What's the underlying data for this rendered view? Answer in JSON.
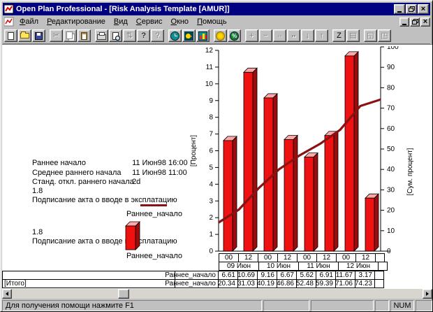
{
  "window": {
    "title": "Open Plan Professional - [Risk Analysis Template [AMUR]]"
  },
  "menu": {
    "items": [
      {
        "label": "Файл",
        "u": 0
      },
      {
        "label": "Редактирование",
        "u": 0
      },
      {
        "label": "Вид",
        "u": 0
      },
      {
        "label": "Сервис",
        "u": 0
      },
      {
        "label": "Окно",
        "u": 0
      },
      {
        "label": "Помощь",
        "u": 0
      }
    ]
  },
  "toolbar": {
    "buttons": [
      {
        "name": "new-document",
        "icon": "page",
        "enabled": true
      },
      {
        "name": "open-file",
        "icon": "folder",
        "enabled": true
      },
      {
        "name": "save",
        "icon": "floppy",
        "enabled": true
      },
      {
        "name": "cut",
        "glyph": "✂",
        "enabled": false,
        "gap": true
      },
      {
        "name": "copy",
        "icon": "copy",
        "enabled": false
      },
      {
        "name": "paste",
        "icon": "paste",
        "enabled": false
      },
      {
        "name": "print",
        "icon": "print",
        "enabled": true,
        "gap": true
      },
      {
        "name": "print-preview",
        "icon": "preview",
        "enabled": true
      },
      {
        "name": "up-down-arrows",
        "glyph": "⇅",
        "enabled": false
      },
      {
        "name": "help",
        "glyph": "?",
        "enabled": true
      },
      {
        "name": "context-help",
        "glyph": "?",
        "enabled": false
      },
      {
        "name": "time-analysis-clock",
        "icon": "clock",
        "enabled": true,
        "gap": true
      },
      {
        "name": "duck",
        "icon": "duck",
        "enabled": true
      },
      {
        "name": "risk-histogram",
        "icon": "chart",
        "enabled": true
      },
      {
        "name": "cost-coin",
        "icon": "coin",
        "enabled": true,
        "gap": true
      },
      {
        "name": "percent",
        "icon": "percent",
        "enabled": true
      },
      {
        "name": "add",
        "glyph": "+",
        "enabled": false,
        "gap": true
      },
      {
        "name": "remove",
        "glyph": "−",
        "enabled": false
      },
      {
        "name": "link-dots",
        "glyph": "◦◦",
        "small": true,
        "enabled": false
      },
      {
        "name": "outline-steps",
        "glyph": "▪▪",
        "small": true,
        "enabled": false
      },
      {
        "name": "move-down",
        "glyph": "↓",
        "enabled": false
      },
      {
        "name": "move-up",
        "glyph": "↑",
        "enabled": false
      },
      {
        "name": "zoom-z",
        "glyph": "Z",
        "enabled": true,
        "gap": true
      },
      {
        "name": "z-list",
        "glyph": "▤",
        "enabled": false
      },
      {
        "name": "tile-windows",
        "glyph": "◱",
        "enabled": false,
        "gap": true
      },
      {
        "name": "cascade-windows",
        "glyph": "◳",
        "enabled": false
      }
    ]
  },
  "info": {
    "rows": [
      {
        "label": "Раннее начало",
        "value": "11 Июн98 16:00"
      },
      {
        "label": "Среднее раннего начала",
        "value": "11 Июн98 11:00"
      },
      {
        "label": "Станд. откл.  раннего начала",
        "value": "2d"
      }
    ]
  },
  "legend": {
    "entries": [
      {
        "value": "1.8",
        "text": "Подписание акта о вводе в эксплатацию",
        "series": "Раннее_начало",
        "swatch": "line"
      },
      {
        "value": "1.8",
        "text": "Подписание акта о вводе в эксплатацию",
        "series": "Раннее_начало",
        "swatch": "bar"
      }
    ]
  },
  "chart_data": {
    "type": "bar",
    "combo": "bar+cumulative-line",
    "categories": [
      "00",
      "12",
      "00",
      "12",
      "00",
      "12",
      "00",
      "12"
    ],
    "date_groups": [
      "09 Июн",
      "10 Июн",
      "11 Июн",
      "12 Июн"
    ],
    "series": [
      {
        "name": "Раннее_начало",
        "chart": "bar",
        "axis": "left",
        "color": "#ee1212",
        "values": [
          6.61,
          10.69,
          9.16,
          6.67,
          5.62,
          6.91,
          11.67,
          3.17
        ]
      },
      {
        "name": "Раннее_начало",
        "chart": "line",
        "axis": "right",
        "color": "#8b1212",
        "start_value": 14,
        "values": [
          20.34,
          31.03,
          40.19,
          46.86,
          52.48,
          59.39,
          71.06,
          74.23
        ]
      }
    ],
    "ylabel_left": "[Процент]",
    "ylabel_right": "[Сум. процент]",
    "ylim_left": [
      0,
      12
    ],
    "ylim_right": [
      0,
      100
    ],
    "bar_top_color": "#ffa8a8",
    "bar_side_color": "#9b0d0d",
    "table": {
      "rows": [
        {
          "group": "",
          "label": "Раннее_начало",
          "values": [
            "6.61",
            "10.69",
            "9.16",
            "6.67",
            "5.62",
            "6.91",
            "11.67",
            "3.17"
          ]
        },
        {
          "group": "[Итого]",
          "label": "Раннее_начало",
          "values": [
            "20.34",
            "31.03",
            "40.19",
            "46.86",
            "52.48",
            "59.39",
            "71.06",
            "74.23"
          ]
        }
      ]
    }
  },
  "statusbar": {
    "message": "Для получения помощи нажмите F1",
    "num_label": "NUM"
  }
}
